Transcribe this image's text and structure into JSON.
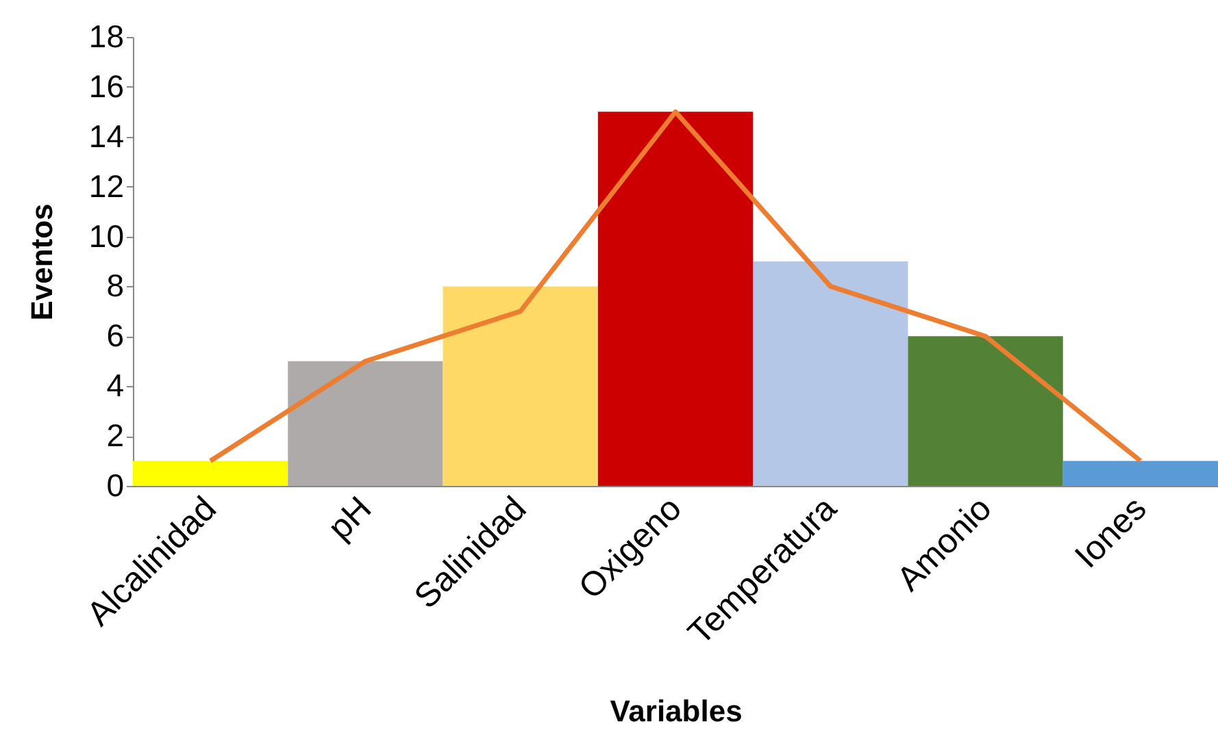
{
  "chart_data": {
    "type": "bar",
    "xlabel": "Variables",
    "ylabel": "Eventos",
    "categories": [
      "Alcalinidad",
      "pH",
      "Salinidad",
      "Oxigeno",
      "Temperatura",
      "Amonio",
      "Iones"
    ],
    "series": [
      {
        "colors": [
          "#ffff00",
          "#aeaaaa",
          "#ffd966",
          "#cc0000",
          "#b4c7e7",
          "#538135",
          "#5b9bd5"
        ],
        "values": [
          1,
          5,
          8,
          15,
          9,
          6,
          1
        ]
      },
      {
        "type": "line",
        "color": "#ed7d31",
        "values": [
          1,
          5,
          7,
          15,
          8,
          6,
          1
        ]
      }
    ],
    "ylim": [
      0,
      18
    ],
    "yticks": [
      0,
      2,
      4,
      6,
      8,
      10,
      12,
      14,
      16,
      18
    ],
    "grid": false,
    "marker": "none",
    "line_style": "solid"
  }
}
